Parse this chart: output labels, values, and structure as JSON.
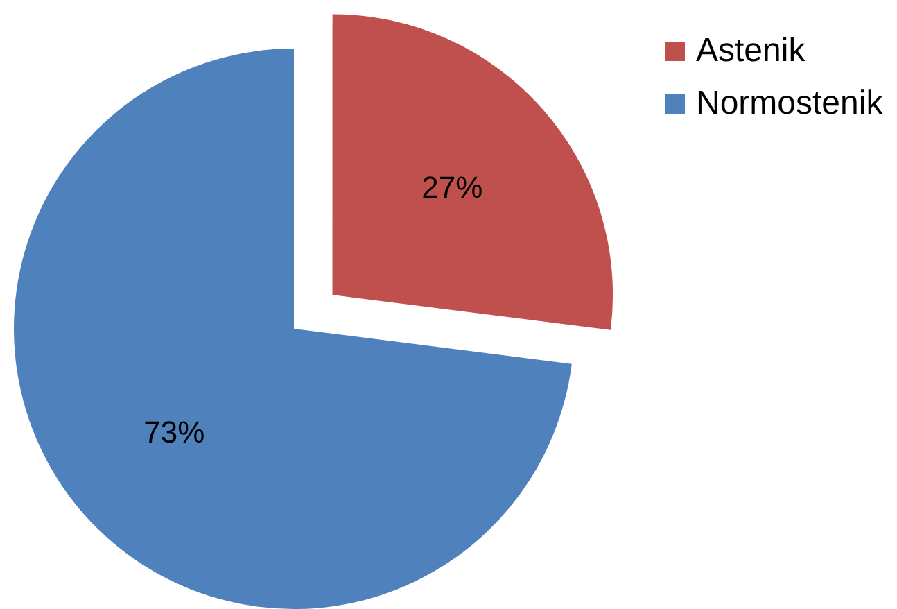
{
  "chart_data": {
    "type": "pie",
    "categories": [
      "Astenik",
      "Normostenik"
    ],
    "values": [
      27,
      73
    ],
    "colors": [
      "#c0504d",
      "#4f81bd"
    ],
    "value_labels": [
      "27%",
      "73%"
    ],
    "legend": "top right"
  }
}
